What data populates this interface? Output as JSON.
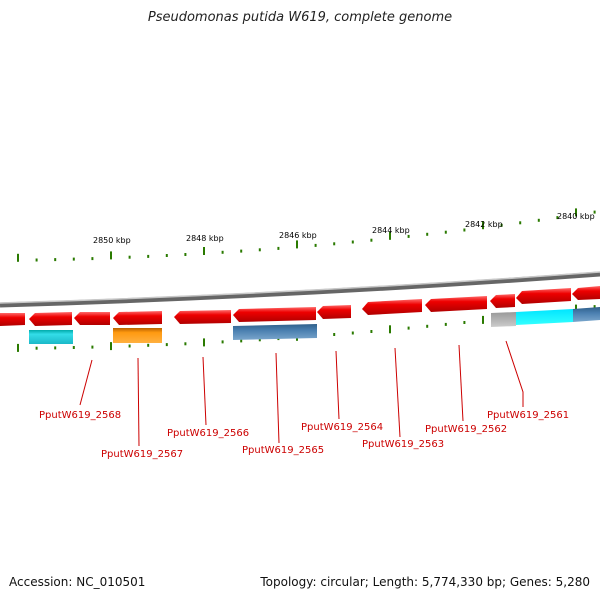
{
  "title": "Pseudomonas putida W619, complete genome",
  "kbp_labels": [
    {
      "name": "kbp-2850",
      "text": "2850 kbp"
    },
    {
      "name": "kbp-2848",
      "text": "2848 kbp"
    },
    {
      "name": "kbp-2846",
      "text": "2846 kbp"
    },
    {
      "name": "kbp-2844",
      "text": "2844 kbp"
    },
    {
      "name": "kbp-2842",
      "text": "2842 kbp"
    },
    {
      "name": "kbp-2840",
      "text": "2840 kbp"
    }
  ],
  "gene_labels": [
    {
      "name": "gene-label-2568",
      "text": "PputW619_2568"
    },
    {
      "name": "gene-label-2567",
      "text": "PputW619_2567"
    },
    {
      "name": "gene-label-2566",
      "text": "PputW619_2566"
    },
    {
      "name": "gene-label-2565",
      "text": "PputW619_2565"
    },
    {
      "name": "gene-label-2564",
      "text": "PputW619_2564"
    },
    {
      "name": "gene-label-2563",
      "text": "PputW619_2563"
    },
    {
      "name": "gene-label-2562",
      "text": "PputW619_2562"
    },
    {
      "name": "gene-label-2561",
      "text": "PputW619_2561"
    }
  ],
  "footer": {
    "accession": "Accession: NC_010501",
    "stats": "Topology: circular; Length: 5,774,330 bp; Genes: 5,280"
  },
  "colors": {
    "gene": "#ee0000",
    "backbone": "#8a8a8a",
    "tick": "#2a7a00",
    "label": "#cc0000",
    "cyan": "#22ccdd",
    "orange": "#ff9900",
    "steelblue": "#4a7fb0",
    "gray": "#b0b0b0"
  }
}
